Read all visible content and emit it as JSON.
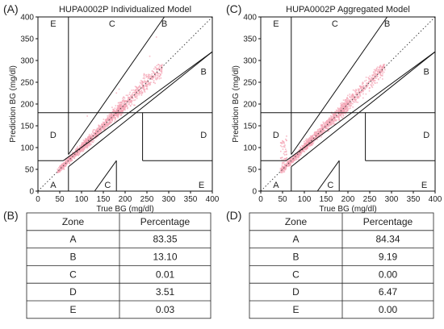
{
  "panels": [
    {
      "letter": "(A)",
      "chart_data": {
        "type": "scatter",
        "title": "HUPA0002P Individualized Model",
        "xlabel": "True BG (mg/dl)",
        "ylabel": "Prediction BG (mg/dl)",
        "xlim": [
          0,
          400
        ],
        "ylim": [
          0,
          400
        ],
        "xticks": [
          0,
          50,
          100,
          150,
          200,
          250,
          300,
          350,
          400
        ],
        "yticks": [
          0,
          50,
          100,
          150,
          200,
          250,
          300,
          350,
          400
        ],
        "grid": false,
        "identity_line": "dotted",
        "chart_style": "Clarke error grid",
        "zone_labels": [
          "A",
          "B",
          "B",
          "C",
          "C",
          "D",
          "D",
          "E",
          "E"
        ],
        "point_color": "#f4a6b6",
        "points_description_ranges": [
          {
            "x": [
              40,
              300
            ],
            "y": [
              40,
              290
            ]
          }
        ]
      }
    },
    {
      "letter": "(C)",
      "chart_data": {
        "type": "scatter",
        "title": "HUPA0002P Aggregated Model",
        "xlabel": "True BG (mg/dl)",
        "ylabel": "Prediction BG (mg/dl)",
        "xlim": [
          0,
          400
        ],
        "ylim": [
          0,
          400
        ],
        "xticks": [
          0,
          50,
          100,
          150,
          200,
          250,
          300,
          350,
          400
        ],
        "yticks": [
          0,
          50,
          100,
          150,
          200,
          250,
          300,
          350,
          400
        ],
        "grid": false,
        "identity_line": "dotted",
        "chart_style": "Clarke error grid",
        "zone_labels": [
          "A",
          "B",
          "B",
          "C",
          "C",
          "D",
          "D",
          "E",
          "E"
        ],
        "point_color": "#f4a6b6",
        "points_description_ranges": [
          {
            "x": [
              40,
              300
            ],
            "y": [
              40,
              290
            ]
          }
        ]
      }
    }
  ],
  "tables": [
    {
      "letter": "(B)",
      "chart_data": {
        "type": "table",
        "columns": [
          "Zone",
          "Percentage"
        ],
        "rows": [
          [
            "A",
            "83.35"
          ],
          [
            "B",
            "13.10"
          ],
          [
            "C",
            "0.01"
          ],
          [
            "D",
            "3.51"
          ],
          [
            "E",
            "0.03"
          ]
        ]
      }
    },
    {
      "letter": "(D)",
      "chart_data": {
        "type": "table",
        "columns": [
          "Zone",
          "Percentage"
        ],
        "rows": [
          [
            "A",
            "84.34"
          ],
          [
            "B",
            "9.19"
          ],
          [
            "C",
            "0.00"
          ],
          [
            "D",
            "6.47"
          ],
          [
            "E",
            "0.00"
          ]
        ]
      }
    }
  ]
}
